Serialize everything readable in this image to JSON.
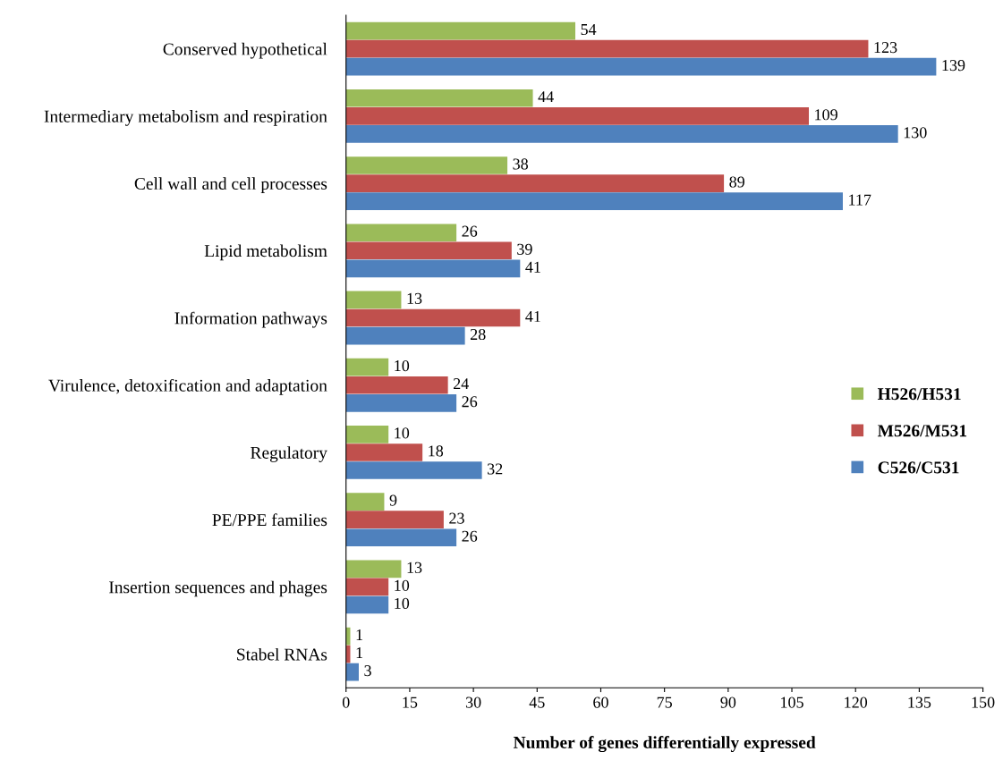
{
  "chart_data": {
    "type": "bar",
    "orientation": "horizontal",
    "categories": [
      "Conserved hypothetical",
      "Intermediary metabolism and respiration",
      "Cell wall and cell processes",
      "Lipid metabolism",
      "Information pathways",
      "Virulence, detoxification and adaptation",
      "Regulatory",
      "PE/PPE families",
      "Insertion sequences and phages",
      "Stabel RNAs"
    ],
    "series": [
      {
        "name": "H526/H531",
        "color": "#9bbb59",
        "values": [
          54,
          44,
          38,
          26,
          13,
          10,
          10,
          9,
          13,
          1
        ]
      },
      {
        "name": "M526/M531",
        "color": "#c0504d",
        "values": [
          123,
          109,
          89,
          39,
          41,
          24,
          18,
          23,
          10,
          1
        ]
      },
      {
        "name": "C526/C531",
        "color": "#4f81bd",
        "values": [
          139,
          130,
          117,
          41,
          28,
          26,
          32,
          26,
          10,
          3
        ]
      }
    ],
    "xlabel": "Number of genes differentially expressed",
    "xlim": [
      0,
      150
    ],
    "xticks": [
      0,
      15,
      30,
      45,
      60,
      75,
      90,
      105,
      120,
      135,
      150
    ],
    "data_labels": true,
    "grid": false,
    "legend": "right"
  }
}
